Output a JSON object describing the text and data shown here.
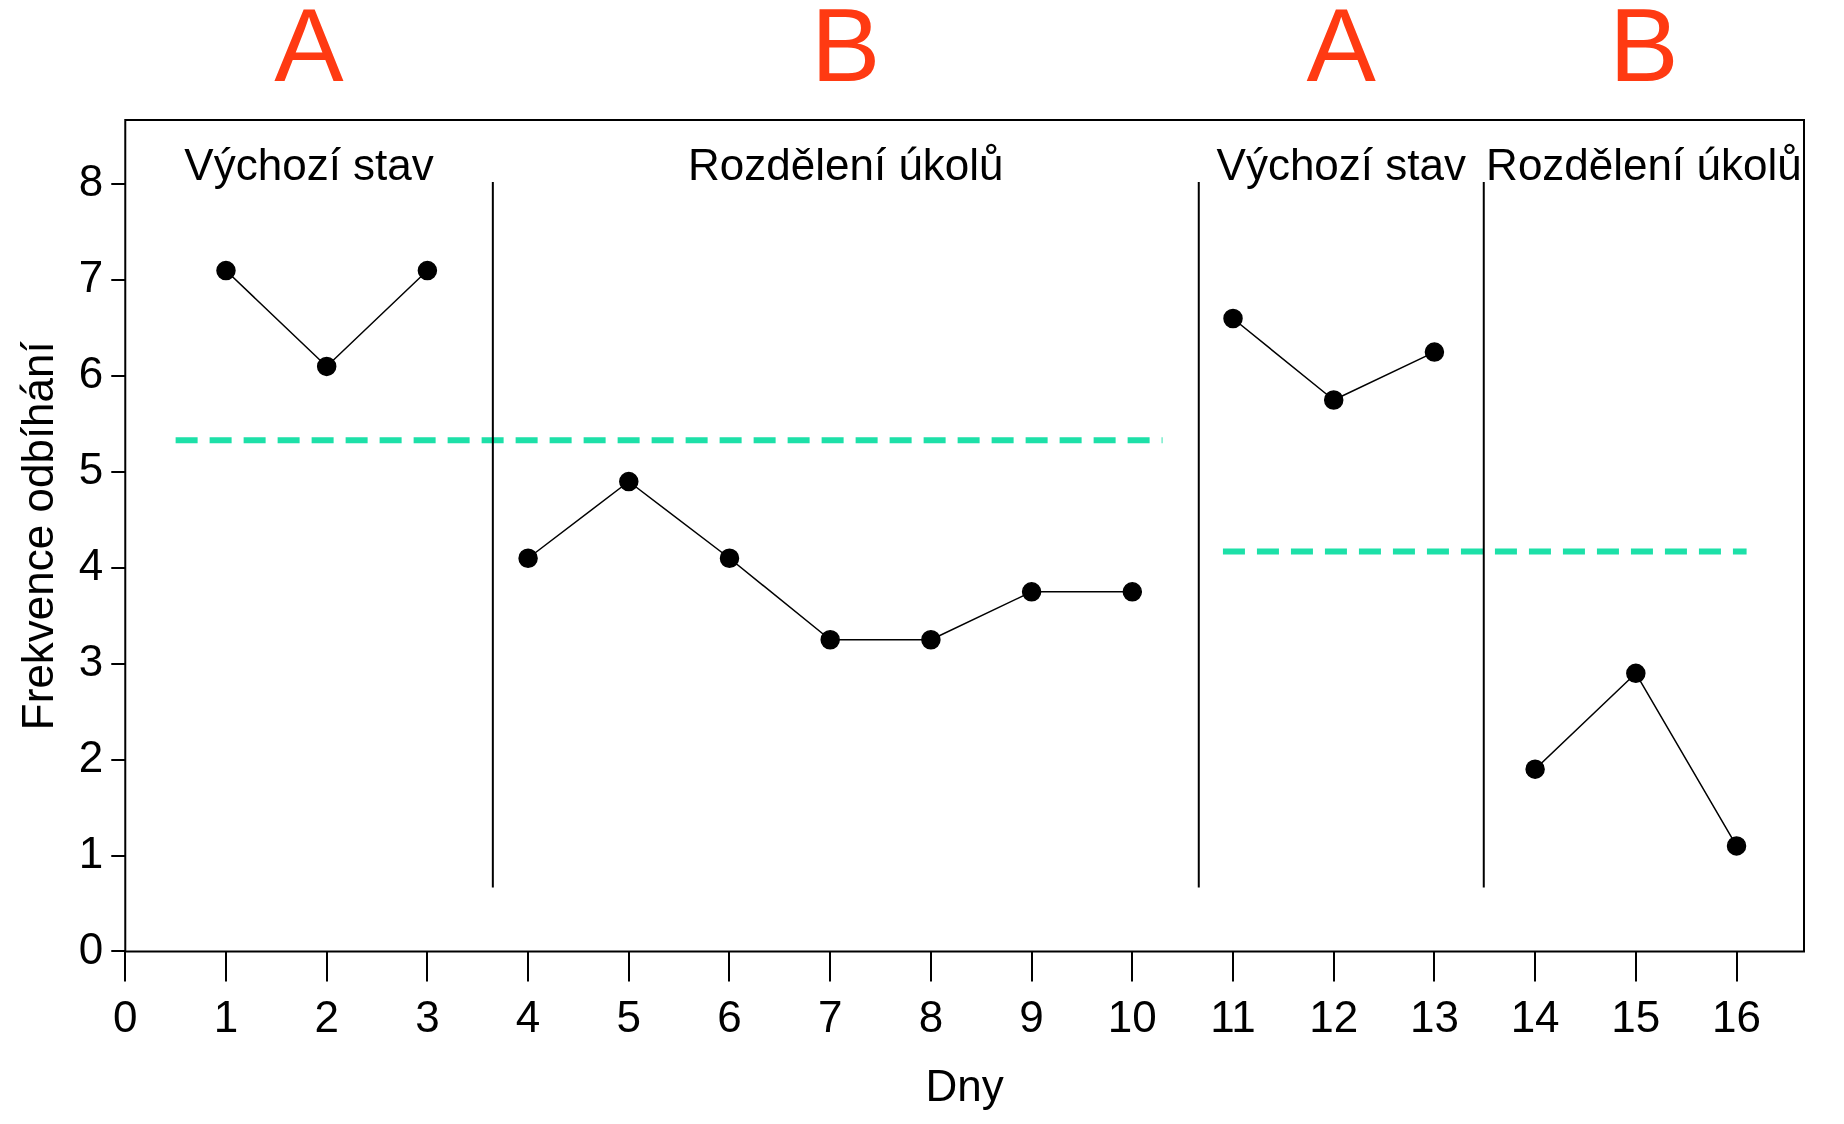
{
  "chart_data": {
    "type": "line",
    "xlabel": "Dny",
    "ylabel": "Frekvence odbíhání",
    "xlim": [
      0,
      16.67
    ],
    "ylim": [
      0,
      8.67
    ],
    "xticks": [
      0,
      1,
      2,
      3,
      4,
      5,
      6,
      7,
      8,
      9,
      10,
      11,
      12,
      13,
      14,
      15,
      16
    ],
    "yticks": [
      0,
      1,
      2,
      3,
      4,
      5,
      6,
      7,
      8
    ],
    "grid": false,
    "legend": false,
    "marker": "circle",
    "series": [
      {
        "color": "#000000",
        "x": [
          1,
          2,
          3
        ],
        "values": [
          7.1,
          6.1,
          7.1
        ]
      },
      {
        "color": "#000000",
        "x": [
          4,
          5,
          6,
          7,
          8,
          9,
          10
        ],
        "values": [
          4.1,
          4.9,
          4.1,
          3.25,
          3.25,
          3.75,
          3.75
        ]
      },
      {
        "color": "#000000",
        "x": [
          11,
          12,
          13
        ],
        "values": [
          6.6,
          5.75,
          6.25
        ]
      },
      {
        "color": "#000000",
        "x": [
          14,
          15,
          16
        ],
        "values": [
          1.9,
          2.9,
          1.1
        ]
      },
      {
        "type": "line",
        "color": "#1de0a8",
        "marker": "none",
        "line_style": "dashed",
        "x": [
          0.5,
          10.3
        ],
        "values": [
          5.33,
          5.33
        ]
      },
      {
        "type": "line",
        "color": "#1de0a8",
        "marker": "none",
        "line_style": "dashed",
        "x": [
          10.9,
          16.1
        ],
        "values": [
          4.17,
          4.17
        ]
      }
    ],
    "ref_lines": [
      {
        "axis": "x",
        "value": 3.65,
        "color": "#000000"
      },
      {
        "axis": "x",
        "value": 10.66,
        "color": "#000000"
      },
      {
        "axis": "x",
        "value": 13.49,
        "color": "#000000"
      }
    ],
    "annotations": [
      "A",
      "B",
      "A",
      "B",
      "Výchozí stav",
      "Rozdělení úkolů",
      "Výchozí stav",
      "Rozdělení úkolů"
    ]
  }
}
